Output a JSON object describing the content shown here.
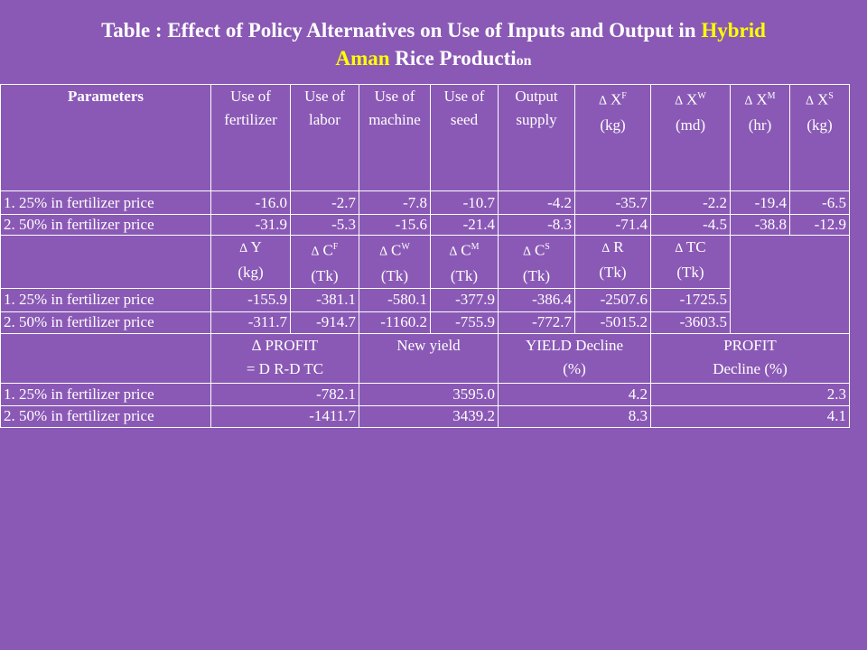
{
  "title": {
    "part1": "Table : Effect of Policy Alternatives on Use of Inputs and Output in ",
    "hybrid": "Hybrid",
    "aman": "Aman",
    "part2": " Rice Producti",
    "part3": "on"
  },
  "section1": {
    "parameters_label": "Parameters",
    "headers": [
      {
        "line1": "Use of",
        "line2": "fertilizer"
      },
      {
        "line1": "Use of",
        "line2": "labor"
      },
      {
        "line1": "Use of",
        "line2": "machine"
      },
      {
        "line1": "Use of",
        "line2": "seed"
      },
      {
        "line1": "Output",
        "line2": "supply"
      },
      {
        "delta": "∆",
        "base": "X",
        "sup": "F",
        "unit": "(kg)"
      },
      {
        "delta": "∆",
        "base": "X",
        "sup": "W",
        "unit": "(md)"
      },
      {
        "delta": "∆",
        "base": "X",
        "sup": "M",
        "unit": "(hr)"
      },
      {
        "delta": "∆",
        "base": "X",
        "sup": "S",
        "unit": "(kg)"
      }
    ],
    "rows": [
      {
        "label": "1. 25%  in fertilizer price",
        "values": [
          "-16.0",
          "-2.7",
          "-7.8",
          "-10.7",
          "-4.2",
          "-35.7",
          "-2.2",
          "-19.4",
          "-6.5"
        ]
      },
      {
        "label": "2. 50%  in fertilizer price",
        "values": [
          "-31.9",
          "-5.3",
          "-15.6",
          "-21.4",
          "-8.3",
          "-71.4",
          "-4.5",
          "-38.8",
          "-12.9"
        ]
      }
    ]
  },
  "section2": {
    "headers": [
      {
        "delta": "∆",
        "base": "Y",
        "sup": "",
        "unit": "(kg)"
      },
      {
        "delta": "∆",
        "base": "C",
        "sup": "F",
        "unit": "(Tk)"
      },
      {
        "delta": "∆",
        "base": "C",
        "sup": "W",
        "unit": "(Tk)"
      },
      {
        "delta": "∆",
        "base": "C",
        "sup": "M",
        "unit": "(Tk)"
      },
      {
        "delta": "∆",
        "base": "C",
        "sup": "S",
        "unit": "(Tk)"
      },
      {
        "delta": "∆",
        "base": "R",
        "sup": "",
        "unit": "(Tk)"
      },
      {
        "delta": "∆",
        "base": "TC",
        "sup": "",
        "unit": "(Tk)"
      }
    ],
    "rows": [
      {
        "label": "1. 25%  in fertilizer price",
        "values": [
          "-155.9",
          "-381.1",
          "-580.1",
          "-377.9",
          "-386.4",
          "-2507.6",
          "-1725.5"
        ]
      },
      {
        "label": "2. 50%  in fertilizer price",
        "values": [
          "-311.7",
          "-914.7",
          "-1160.2",
          "-755.9",
          "-772.7",
          "-5015.2",
          "-3603.5"
        ]
      }
    ]
  },
  "section3": {
    "headers": [
      {
        "line1": "∆ PROFIT",
        "line2": "= D R-D TC"
      },
      {
        "line1": "New yield",
        "line2": ""
      },
      {
        "line1": "YIELD Decline",
        "line2": "(%)"
      },
      {
        "line1": "PROFIT",
        "line2": "Decline (%)"
      }
    ],
    "rows": [
      {
        "label": "1. 25%  in fertilizer price",
        "values": [
          "-782.1",
          "3595.0",
          "4.2",
          "2.3"
        ]
      },
      {
        "label": "2. 50%  in fertilizer price",
        "values": [
          "-1411.7",
          "3439.2",
          "8.3",
          "4.1"
        ]
      }
    ]
  }
}
